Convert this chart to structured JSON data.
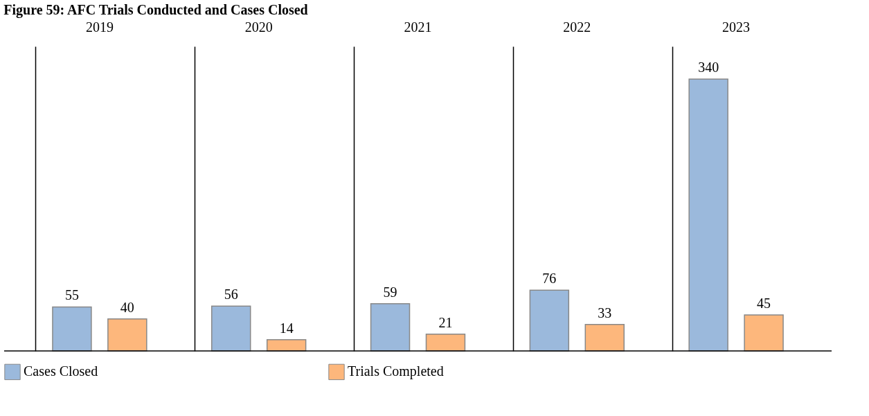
{
  "chart_data": {
    "type": "bar",
    "title": "Figure 59: AFC Trials Conducted and Cases Closed",
    "categories": [
      "2019",
      "2020",
      "2021",
      "2022",
      "2023"
    ],
    "series": [
      {
        "name": "Cases Closed",
        "color": "#9bb9dc",
        "values": [
          55,
          56,
          59,
          76,
          340
        ]
      },
      {
        "name": "Trials Completed",
        "color": "#fdb77c",
        "values": [
          40,
          14,
          21,
          33,
          45
        ]
      }
    ],
    "data_labels": true,
    "legend": "bottom",
    "grid": "x"
  }
}
